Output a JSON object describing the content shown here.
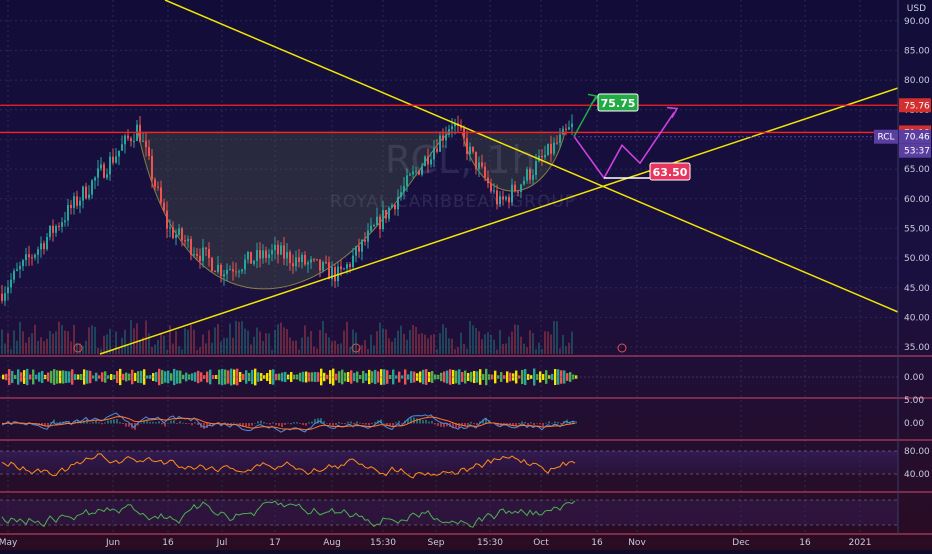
{
  "header": {
    "currency": "USD"
  },
  "watermark": {
    "symbol": "RCL, 1h",
    "company": "ROYAL CARIBBEAN GROUP"
  },
  "colors": {
    "bg": "#0e0a2a",
    "up": "#26a69a",
    "down": "#ef5350",
    "trendline": "#f2e600",
    "resistance": "#ff2020",
    "target": "#22aa44",
    "projection": "#d040e0",
    "stop": "#e8355e",
    "osc_orange": "#ff8c1a",
    "osc_green": "#4caf50",
    "macd": "#4d8fe0",
    "signal": "#ff7a2a"
  },
  "price_axis": {
    "ticks": [
      "90.00",
      "85.00",
      "80.00",
      "75.00",
      "70.00",
      "65.00",
      "60.00",
      "55.00",
      "50.00",
      "45.00",
      "40.00",
      "35.00"
    ],
    "ylim": [
      33.5,
      93.5
    ]
  },
  "time_axis": {
    "labels": [
      "May",
      "Jun",
      "16",
      "Jul",
      "17",
      "Aug",
      "15:30",
      "Sep",
      "15:30",
      "Oct",
      "16",
      "Nov",
      "Dec",
      "16",
      "2021"
    ]
  },
  "price_tags": {
    "resistance_hi": "75.76",
    "resistance_lo": "71.18",
    "symbol": "RCL",
    "last": "70.46",
    "countdown": "53:37"
  },
  "annotations": {
    "target": "75.75",
    "stop": "63.50"
  },
  "indicators": {
    "vol_pane": {
      "ticks": [
        "0.00"
      ]
    },
    "macd_pane": {
      "ticks": [
        "5.00",
        "0.00"
      ]
    },
    "rsi_pane": {
      "ticks": [
        "80.00",
        "40.00"
      ]
    },
    "stoch_pane": {
      "ticks": []
    }
  },
  "chart_data": {
    "type": "line",
    "title": "RCL, 1h",
    "xlabel": "",
    "ylabel": "",
    "ylim": [
      33.5,
      93.5
    ],
    "x": [
      "May",
      "Jun",
      "16",
      "Jul",
      "17",
      "Aug",
      "15:30",
      "Sep",
      "15:30",
      "Oct"
    ],
    "series": [
      {
        "name": "RCL",
        "values": [
          44,
          72,
          55,
          48,
          51,
          47,
          62,
          73,
          59,
          72
        ]
      }
    ],
    "resistance_levels": [
      75.76,
      71.18
    ],
    "last_price": 70.46,
    "target_price": 75.75,
    "support_price": 63.5,
    "pattern": "cup and handle",
    "grid": true
  }
}
